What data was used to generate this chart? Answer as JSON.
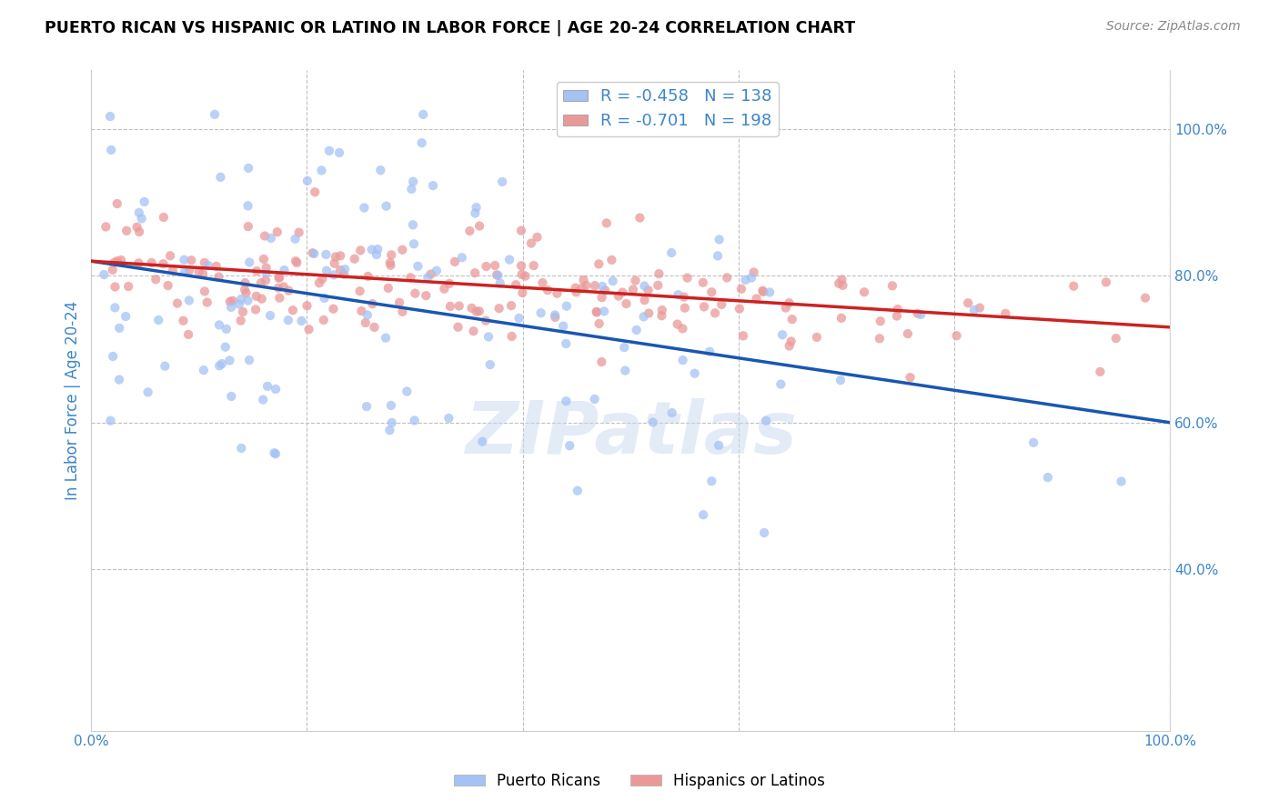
{
  "title": "PUERTO RICAN VS HISPANIC OR LATINO IN LABOR FORCE | AGE 20-24 CORRELATION CHART",
  "source": "Source: ZipAtlas.com",
  "ylabel": "In Labor Force | Age 20-24",
  "r_blue": -0.458,
  "n_blue": 138,
  "r_pink": -0.701,
  "n_pink": 198,
  "blue_color": "#a4c2f4",
  "pink_color": "#ea9999",
  "blue_line_color": "#1a56b0",
  "pink_line_color": "#cc2222",
  "axis_label_color": "#3d85c8",
  "background_color": "#ffffff",
  "grid_color": "#c0c0c0",
  "watermark": "ZIPatlas",
  "xlim": [
    0.0,
    1.0
  ],
  "ylim": [
    0.18,
    1.08
  ],
  "x_ticks": [
    0.0,
    0.2,
    0.4,
    0.6,
    0.8,
    1.0
  ],
  "x_tick_labels_show": [
    "0.0%",
    "",
    "",
    "",
    "",
    "100.0%"
  ],
  "y_ticks_right": [
    0.4,
    0.6,
    0.8,
    1.0
  ],
  "y_tick_labels_right": [
    "40.0%",
    "60.0%",
    "80.0%",
    "100.0%"
  ],
  "blue_intercept": 0.82,
  "blue_slope": -0.22,
  "pink_intercept": 0.82,
  "pink_slope": -0.09,
  "legend_r_color": "#3d85c8",
  "legend_n_color": "#3d85c8"
}
